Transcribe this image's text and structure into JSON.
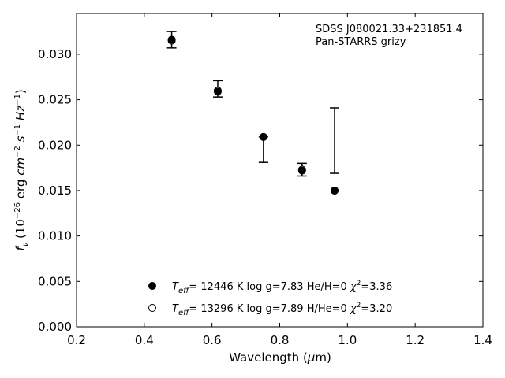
{
  "chart_data": {
    "type": "scatter",
    "xlabel": "Wavelength (μm)",
    "ylabel": "f_ν (10^−26 erg cm^−2 s^−1 Hz^−1)",
    "xlim": [
      0.2,
      1.4
    ],
    "ylim": [
      0.0,
      0.0345
    ],
    "x_ticks": [
      "0.2",
      "0.4",
      "0.6",
      "0.8",
      "1.0",
      "1.2",
      "1.4"
    ],
    "y_ticks": [
      "0.000",
      "0.005",
      "0.010",
      "0.015",
      "0.020",
      "0.025",
      "0.030"
    ],
    "annotations": [
      "SDSS J080021.33+231851.4",
      "Pan-STARRS grizy"
    ],
    "grid": false,
    "legend_position": "bottom-center",
    "observed": {
      "x": [
        0.481,
        0.617,
        0.752,
        0.866,
        0.962
      ],
      "y": [
        0.0316,
        0.0262,
        0.0209,
        0.0173,
        null
      ],
      "err_low": [
        0.0307,
        0.0253,
        0.0181,
        0.0166,
        0.0169
      ],
      "err_high": [
        0.0325,
        0.0271,
        0.0209,
        0.018,
        0.0241
      ]
    },
    "series": [
      {
        "name": "T_eff= 12446 K  log g=7.83  He/H=0  χ²=3.36",
        "marker": "filled",
        "x": [
          0.481,
          0.617,
          0.752,
          0.866,
          0.962
        ],
        "y": [
          0.0316,
          0.0259,
          0.0209,
          0.0172,
          0.015
        ]
      },
      {
        "name": "T_eff= 13296 K  log g=7.89  H/He=0  χ²=3.20",
        "marker": "open",
        "x": [
          0.481,
          0.617,
          0.752,
          0.866,
          0.962
        ],
        "y": [
          0.0315,
          0.026,
          0.0209,
          0.0173,
          0.015
        ]
      }
    ],
    "legend": [
      {
        "teff": "12446",
        "logg": "7.83",
        "comp": "He/H=0",
        "chi2": "3.36"
      },
      {
        "teff": "13296",
        "logg": "7.89",
        "comp": "H/He=0",
        "chi2": "3.20"
      }
    ]
  }
}
